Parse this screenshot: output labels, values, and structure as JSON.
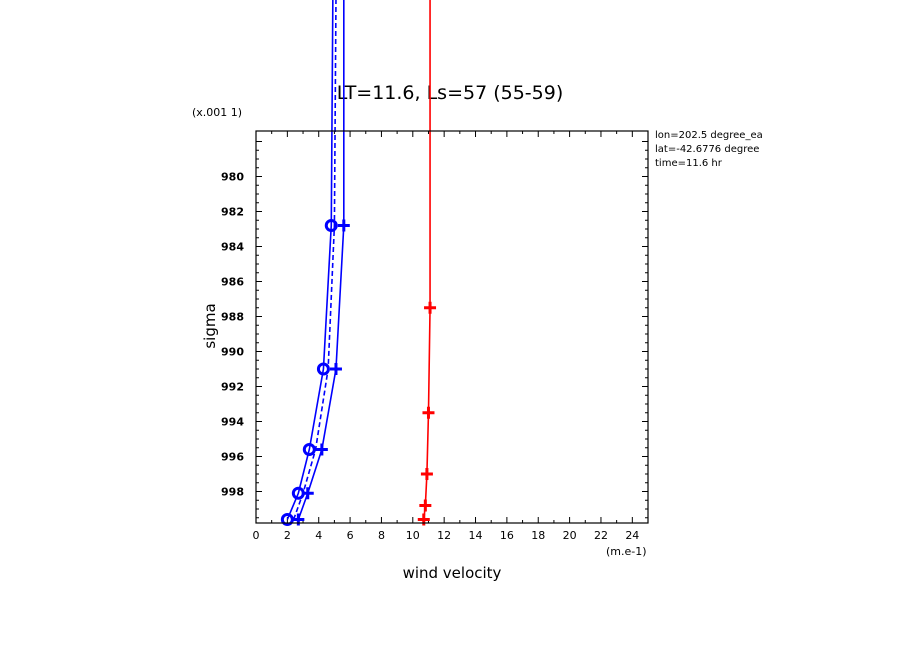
{
  "chart_data": {
    "type": "line",
    "title": "LT=11.6, Ls=57 (55-59)",
    "xlabel": "wind velocity",
    "ylabel": "sigma",
    "x_scale_label": "(m.e-1)",
    "y_scale_label": "(x.001 1)",
    "xlim": [
      0,
      25
    ],
    "ylim": [
      999.8,
      977.4
    ],
    "x_ticks": [
      "0",
      "2",
      "4",
      "6",
      "8",
      "10",
      "12",
      "14",
      "16",
      "18",
      "20",
      "22",
      "24"
    ],
    "y_ticks": [
      "980",
      "982",
      "984",
      "986",
      "988",
      "990",
      "992",
      "994",
      "996",
      "998"
    ],
    "annotations": [
      "lon=202.5 degree_ea",
      "lat=-42.6776 degree",
      "time=11.6 hr"
    ],
    "series": [
      {
        "color": "#0000ff",
        "style": "solid",
        "marker": "plus",
        "points": [
          [
            2.7,
            999.6
          ],
          [
            3.3,
            998.1
          ],
          [
            4.2,
            995.6
          ],
          [
            5.1,
            991.0
          ],
          [
            5.6,
            982.8
          ],
          [
            5.6,
            977.4
          ]
        ]
      },
      {
        "color": "#0000ff",
        "style": "solid",
        "marker": "circle",
        "points": [
          [
            2.0,
            999.6
          ],
          [
            2.7,
            998.1
          ],
          [
            3.4,
            995.6
          ],
          [
            4.3,
            991.0
          ],
          [
            4.8,
            982.8
          ],
          [
            4.9,
            977.4
          ]
        ]
      },
      {
        "color": "#0000ff",
        "style": "dashed",
        "marker": "none",
        "points": [
          [
            2.4,
            999.6
          ],
          [
            3.0,
            998.1
          ],
          [
            3.8,
            995.6
          ],
          [
            4.6,
            991.0
          ],
          [
            5.0,
            982.8
          ],
          [
            5.1,
            977.4
          ]
        ]
      },
      {
        "color": "#ff0000",
        "style": "solid",
        "marker": "plus",
        "points": [
          [
            10.7,
            999.6
          ],
          [
            10.8,
            998.8
          ],
          [
            10.9,
            997.0
          ],
          [
            11.0,
            993.5
          ],
          [
            11.1,
            987.5
          ],
          [
            11.1,
            977.4
          ]
        ]
      }
    ]
  }
}
